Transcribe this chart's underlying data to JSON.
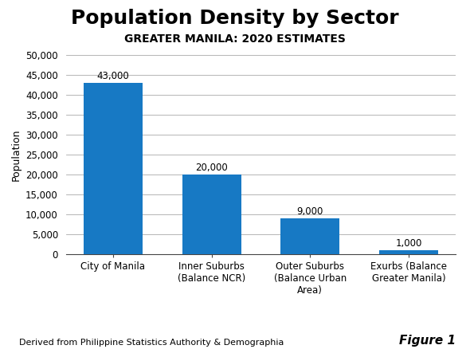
{
  "title": "Population Density by Sector",
  "subtitle": "GREATER MANILA: 2020 ESTIMATES",
  "categories": [
    "City of Manila",
    "Inner Suburbs\n(Balance NCR)",
    "Outer Suburbs\n(Balance Urban\nArea)",
    "Exurbs (Balance\nGreater Manila)"
  ],
  "values": [
    43000,
    20000,
    9000,
    1000
  ],
  "bar_labels": [
    "43,000",
    "20,000",
    "9,000",
    "1,000"
  ],
  "bar_color": "#1779c4",
  "ylabel": "Population",
  "ylim": [
    0,
    50000
  ],
  "yticks": [
    0,
    5000,
    10000,
    15000,
    20000,
    25000,
    30000,
    35000,
    40000,
    45000,
    50000
  ],
  "ytick_labels": [
    "0",
    "5,000",
    "10,000",
    "15,000",
    "20,000",
    "25,000",
    "30,000",
    "35,000",
    "40,000",
    "45,000",
    "50,000"
  ],
  "footnote": "Derived from Philippine Statistics Authority & Demographia",
  "figure_label": "Figure 1",
  "bg_color": "#ffffff",
  "grid_color": "#aaaaaa",
  "title_fontsize": 18,
  "subtitle_fontsize": 10,
  "ylabel_fontsize": 9,
  "tick_fontsize": 8.5,
  "bar_label_fontsize": 8.5,
  "footnote_fontsize": 8,
  "figure_label_fontsize": 11
}
